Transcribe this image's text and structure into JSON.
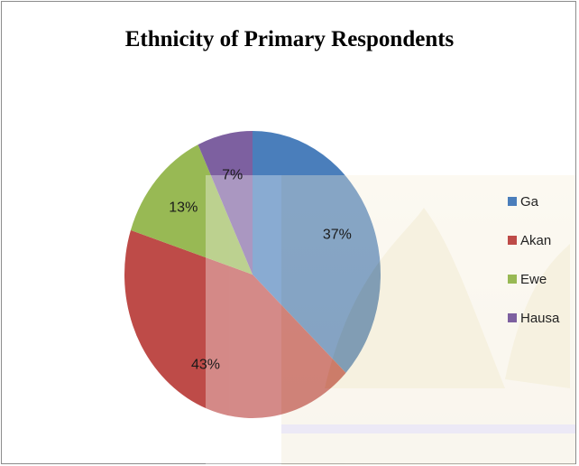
{
  "chart_data": {
    "type": "pie",
    "title": "Ethnicity of Primary Respondents",
    "slices": [
      {
        "label": "Ga",
        "value": 37,
        "display": "37%",
        "color": "#4a7ebb"
      },
      {
        "label": "Akan",
        "value": 43,
        "display": "43%",
        "color": "#be4b48"
      },
      {
        "label": "Ewe",
        "value": 13,
        "display": "13%",
        "color": "#98b954"
      },
      {
        "label": "Hausa",
        "value": 7,
        "display": "7%",
        "color": "#7d60a0"
      }
    ],
    "legend_position": "right"
  }
}
